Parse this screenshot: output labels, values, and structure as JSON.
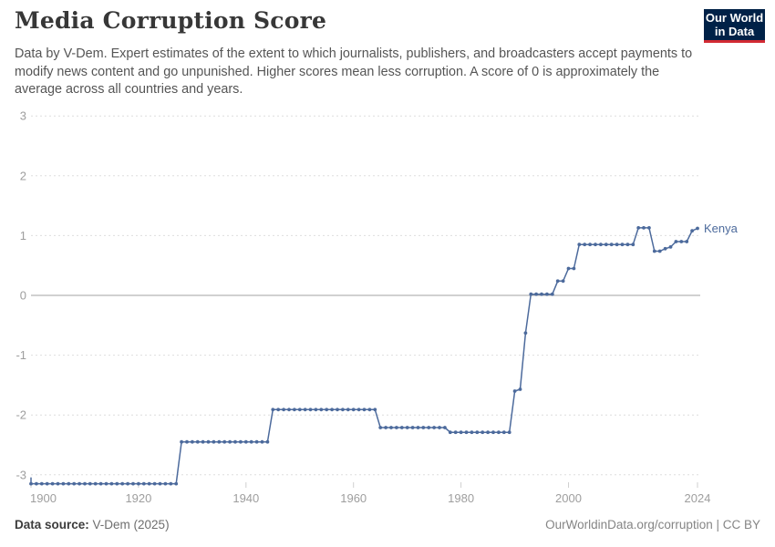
{
  "header": {
    "title": "Media Corruption Score",
    "subtitle": "Data by V-Dem. Expert estimates of the extent to which journalists, publishers, and broadcasters accept payments to modify news content and go unpunished. Higher scores mean less corruption. A score of 0 is approximately the average across all countries and years.",
    "logo": {
      "line1": "Our World",
      "line2": "in Data",
      "bg_color": "#002147",
      "accent_color": "#d22a33"
    }
  },
  "footer": {
    "source_label": "Data source:",
    "source_value": " V-Dem (2025)",
    "url": "OurWorldinData.org/corruption",
    "separator": " | ",
    "license": "CC BY"
  },
  "chart_data": {
    "type": "line",
    "title": "Media Corruption Score",
    "entity": "Kenya",
    "x_axis": {
      "range": [
        1900,
        2024
      ],
      "ticks": [
        1900,
        1920,
        1940,
        1960,
        1980,
        2000,
        2024
      ]
    },
    "y_axis": {
      "range": [
        -3.2,
        3
      ],
      "ticks": [
        3,
        2,
        1,
        0,
        -1,
        -2,
        -3
      ],
      "grid": "dashed",
      "zero_line": "solid"
    },
    "colors": {
      "line": "#4c6a9c",
      "grid": "#dedede",
      "zero_line": "#a3a3a3",
      "axis_text": "#9e9e9e",
      "tick": "#cfcfcf"
    },
    "legend_position": "end-of-line",
    "series": [
      {
        "name": "Kenya",
        "color": "#4c6a9c",
        "point_markers": true,
        "segments_year_start_end_value": [
          [
            1900,
            1927,
            -3.15
          ],
          [
            1928,
            1944,
            -2.45
          ],
          [
            1945,
            1964,
            -1.91
          ],
          [
            1965,
            1977,
            -2.21
          ],
          [
            1978,
            1989,
            -2.29
          ],
          [
            1990,
            1990,
            -1.6
          ],
          [
            1991,
            1991,
            -1.57
          ],
          [
            1992,
            1992,
            -0.63
          ],
          [
            1993,
            1997,
            0.02
          ],
          [
            1998,
            1999,
            0.24
          ],
          [
            2000,
            2001,
            0.45
          ],
          [
            2002,
            2012,
            0.85
          ],
          [
            2013,
            2015,
            1.13
          ],
          [
            2016,
            2017,
            0.74
          ],
          [
            2018,
            2018,
            0.78
          ],
          [
            2019,
            2019,
            0.81
          ],
          [
            2020,
            2022,
            0.9
          ],
          [
            2023,
            2023,
            1.08
          ],
          [
            2024,
            2024,
            1.12
          ]
        ]
      }
    ]
  }
}
